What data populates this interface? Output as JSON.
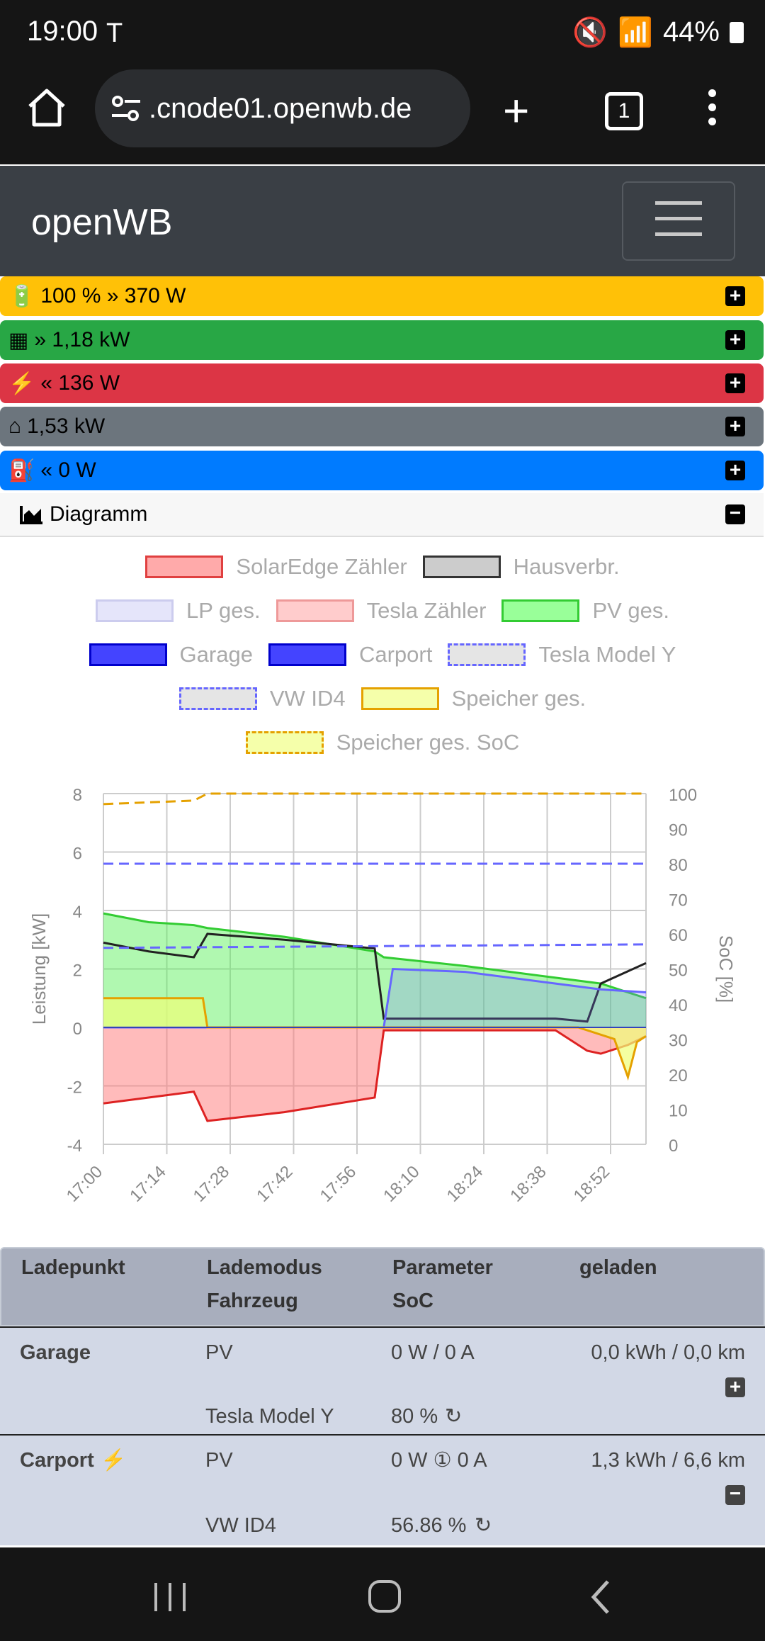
{
  "status": {
    "time": "19:00",
    "battery": "44%"
  },
  "browser": {
    "url": ".cnode01.openwb.de",
    "tab_count": "1"
  },
  "app": {
    "brand": "openWB"
  },
  "bars": [
    {
      "text": "100 % » 370 W",
      "color": "#ffc107",
      "icon": "battery-icon"
    },
    {
      "text": "» 1,18 kW",
      "color": "#28a745",
      "icon": "solar-panel-icon"
    },
    {
      "text": "« 136 W",
      "color": "#dc3545",
      "icon": "grid-icon"
    },
    {
      "text": "1,53 kW",
      "color": "#6c757d",
      "icon": "house-icon"
    },
    {
      "text": "« 0 W",
      "color": "#007bff",
      "icon": "charging-station-icon"
    }
  ],
  "diagram": {
    "label": "Diagramm"
  },
  "legend": [
    [
      "SolarEdge Zähler",
      "Hausverbr."
    ],
    [
      "LP ges.",
      "Tesla Zähler",
      "PV ges."
    ],
    [
      "Garage",
      "Carport",
      "Tesla Model Y"
    ],
    [
      "VW ID4",
      "Speicher ges."
    ],
    [
      "Speicher ges. SoC"
    ]
  ],
  "chart_data": {
    "type": "line",
    "ylabel": "Leistung [kW]",
    "y2label": "SoC [%]",
    "ylim": [
      -4,
      8
    ],
    "y2lim": [
      0,
      100
    ],
    "yticks": [
      "8",
      "6",
      "4",
      "2",
      "0",
      "-2",
      "-4"
    ],
    "y2ticks": [
      "100",
      "90",
      "80",
      "70",
      "60",
      "50",
      "40",
      "30",
      "20",
      "10",
      "0"
    ],
    "xticks": [
      "17:00",
      "17:14",
      "17:28",
      "17:42",
      "17:56",
      "18:10",
      "18:24",
      "18:38",
      "18:52"
    ],
    "series": [
      {
        "name": "PV ges.",
        "color": "#33cc33",
        "x": [
          0,
          10,
          20,
          23,
          40,
          60,
          62,
          80,
          100,
          110,
          120
        ],
        "y": [
          3.9,
          3.6,
          3.5,
          3.4,
          3.1,
          2.6,
          2.4,
          2.1,
          1.7,
          1.5,
          1.0
        ]
      },
      {
        "name": "Hausverbr.",
        "color": "#222222",
        "x": [
          0,
          10,
          20,
          23,
          40,
          60,
          62,
          80,
          100,
          107,
          110,
          120
        ],
        "y": [
          2.9,
          2.6,
          2.4,
          3.2,
          3.0,
          2.7,
          0.3,
          0.3,
          0.3,
          0.2,
          1.5,
          2.2
        ]
      },
      {
        "name": "SolarEdge Zähler",
        "color": "#dd2222",
        "x": [
          0,
          10,
          20,
          23,
          40,
          60,
          62,
          80,
          100,
          107,
          110,
          116,
          120
        ],
        "y": [
          -2.6,
          -2.4,
          -2.2,
          -3.2,
          -2.9,
          -2.4,
          -0.1,
          -0.1,
          -0.1,
          -0.8,
          -0.9,
          -0.6,
          -0.3
        ]
      },
      {
        "name": "LP ges.",
        "color": "#6666ff",
        "x": [
          0,
          62,
          64,
          80,
          100,
          110,
          120
        ],
        "y": [
          0,
          0,
          2.0,
          1.9,
          1.5,
          1.3,
          1.2
        ]
      },
      {
        "name": "Speicher ges.",
        "color": "#e5a100",
        "x": [
          0,
          22,
          23,
          105,
          113,
          116,
          118,
          120
        ],
        "y": [
          1.0,
          1.0,
          0,
          0,
          -0.4,
          -1.7,
          -0.5,
          -0.3
        ]
      },
      {
        "name": "Speicher ges. SoC",
        "color": "#e5a100",
        "dashed": true,
        "axis": "y2",
        "x": [
          0,
          20,
          23,
          120
        ],
        "y": [
          97,
          98,
          100,
          100
        ]
      },
      {
        "name": "Tesla Model Y",
        "color": "#6666ff",
        "dashed": true,
        "axis": "y2",
        "x": [
          0,
          120
        ],
        "y": [
          80,
          80
        ]
      },
      {
        "name": "VW ID4",
        "color": "#6666ff",
        "dashed": true,
        "axis": "y2",
        "x": [
          0,
          120
        ],
        "y": [
          56,
          57
        ]
      }
    ]
  },
  "table": {
    "headers": [
      "Ladepunkt",
      "Lademodus",
      "Parameter",
      "geladen"
    ],
    "subheaders": [
      "Fahrzeug",
      "SoC"
    ],
    "rows": [
      {
        "name": "Garage",
        "mode": "PV",
        "param": "0 W / 0 A",
        "charged": "0,0 kWh / 0,0 km",
        "vehicle": "Tesla Model Y",
        "soc": "80 %"
      },
      {
        "name": "Carport",
        "mode": "PV",
        "param": "0 W ① 0 A",
        "charged": "1,3 kWh / 6,6 km",
        "vehicle": "VW ID4",
        "soc": "56.86 %"
      }
    ]
  }
}
